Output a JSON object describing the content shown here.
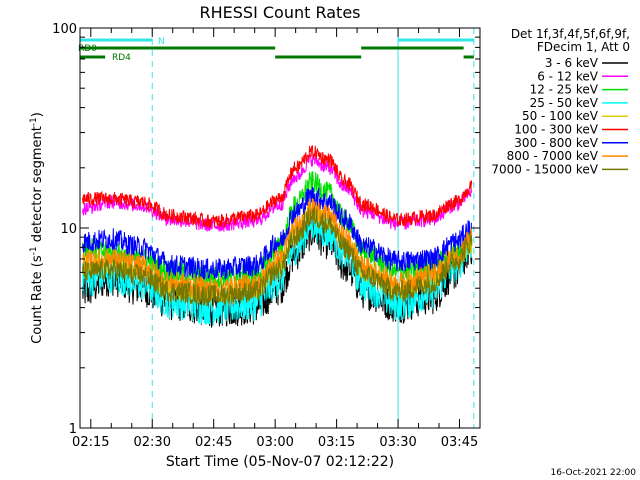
{
  "chart_data": {
    "type": "line",
    "title": "RHESSI Count Rates",
    "xlabel": "Start Time (05-Nov-07 02:12:22)",
    "ylabel": "Count Rate (s⁻¹ detector segment⁻¹)",
    "ylabel_main": "Count Rate (s",
    "ylabel_sup1": "-1",
    "ylabel_mid": " detector segment",
    "ylabel_sup2": "-1",
    "ylabel_end": ")",
    "yscale": "log",
    "ylim": [
      1,
      100
    ],
    "xlim": [
      "02:12:22",
      "03:50:00"
    ],
    "x_ticks": [
      "02:15",
      "02:30",
      "02:45",
      "03:00",
      "03:15",
      "03:30",
      "03:45"
    ],
    "y_ticks": [
      "1",
      "10",
      "100"
    ],
    "legend_header": [
      "Det 1f,3f,4f,5f,6f,9f,",
      "FDecim 1, Att 0"
    ],
    "legend_placement": "right",
    "timestamp": "16-Oct-2021 22:00",
    "flags": {
      "N": {
        "label": "N",
        "color": "#33e6e6",
        "segments": [
          [
            "02:12:22",
            "02:30:00"
          ],
          [
            "03:30:00",
            "03:48:30"
          ]
        ]
      },
      "RD0": {
        "label": "RD0",
        "color": "#007700",
        "segments": [
          [
            "02:12:22",
            "03:00:00"
          ],
          [
            "03:21:00",
            "03:46:00"
          ]
        ]
      },
      "RD4": {
        "label": "RD4",
        "color": "#007700",
        "segments": [
          [
            "02:12:22",
            "02:18:30"
          ],
          [
            "03:00:00",
            "03:21:00"
          ],
          [
            "03:46:00",
            "03:48:30"
          ]
        ]
      }
    },
    "vertical_lines": [
      {
        "time": "02:12:22",
        "style": "solid",
        "color": "#33e6e6"
      },
      {
        "time": "02:30:00",
        "style": "dashed",
        "color": "#33e6e6"
      },
      {
        "time": "03:30:00",
        "style": "solid",
        "color": "#33e6e6"
      },
      {
        "time": "03:48:30",
        "style": "dashed",
        "color": "#33e6e6"
      }
    ],
    "x": [
      "02:13",
      "02:20",
      "02:27",
      "02:35",
      "02:45",
      "02:55",
      "03:01",
      "03:05",
      "03:09",
      "03:13",
      "03:17",
      "03:22",
      "03:30",
      "03:38",
      "03:44",
      "03:48"
    ],
    "series": [
      {
        "name": "3 - 6 keV",
        "color": "#000000",
        "values": [
          4.8,
          5.6,
          5.0,
          4.2,
          3.9,
          4.0,
          5.0,
          7.5,
          9.5,
          8.5,
          6.5,
          4.8,
          4.1,
          4.5,
          6.0,
          8.0
        ]
      },
      {
        "name": "6 - 12 keV",
        "color": "#ff00ff",
        "values": [
          12.5,
          13.5,
          13.0,
          11.0,
          10.3,
          10.8,
          13.0,
          18.0,
          22.0,
          20.0,
          16.0,
          12.0,
          10.5,
          11.0,
          13.0,
          15.0
        ]
      },
      {
        "name": "12 - 25 keV",
        "color": "#00dd00",
        "values": [
          8.0,
          7.5,
          7.0,
          6.0,
          5.7,
          5.9,
          8.0,
          13.0,
          17.0,
          15.0,
          11.0,
          7.5,
          6.0,
          6.5,
          7.5,
          9.0
        ]
      },
      {
        "name": "25 - 50 keV",
        "color": "#00ffff",
        "values": [
          5.5,
          5.8,
          5.3,
          4.3,
          4.0,
          4.2,
          5.5,
          8.0,
          10.5,
          9.5,
          7.5,
          5.2,
          4.2,
          4.8,
          6.5,
          8.5
        ]
      },
      {
        "name": "50 - 100 keV",
        "color": "#ddcc00",
        "values": [
          6.5,
          6.8,
          6.2,
          5.0,
          4.8,
          5.0,
          6.5,
          9.5,
          12.0,
          11.0,
          8.5,
          6.0,
          5.0,
          5.5,
          7.0,
          8.5
        ]
      },
      {
        "name": "100 - 300 keV",
        "color": "#ff0000",
        "values": [
          14.0,
          14.0,
          13.5,
          11.5,
          10.8,
          11.5,
          14.0,
          20.0,
          24.0,
          22.0,
          17.0,
          13.0,
          11.0,
          11.5,
          13.5,
          16.0
        ]
      },
      {
        "name": "300 - 800 keV",
        "color": "#0000ff",
        "values": [
          8.5,
          8.8,
          8.0,
          6.5,
          6.2,
          6.5,
          8.5,
          12.0,
          14.5,
          13.5,
          11.0,
          8.0,
          6.8,
          7.0,
          8.5,
          10.0
        ]
      },
      {
        "name": "800 - 7000 keV",
        "color": "#ff8800",
        "values": [
          6.8,
          7.0,
          6.5,
          5.3,
          5.0,
          5.2,
          7.0,
          10.0,
          12.5,
          11.5,
          9.0,
          6.3,
          5.3,
          5.8,
          7.2,
          9.0
        ]
      },
      {
        "name": "7000 - 15000 keV",
        "color": "#777700",
        "values": [
          6.0,
          6.2,
          5.8,
          4.8,
          4.6,
          4.8,
          6.2,
          9.0,
          11.5,
          10.5,
          8.0,
          5.8,
          4.8,
          5.3,
          6.8,
          8.5
        ]
      }
    ]
  }
}
